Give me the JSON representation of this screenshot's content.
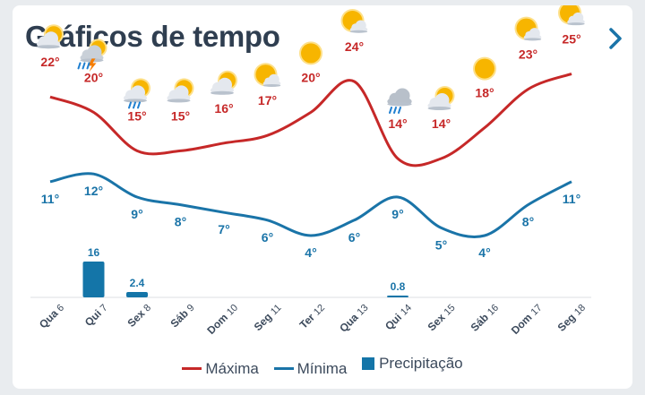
{
  "header": {
    "title": "Gráficos de tempo",
    "next_icon": "chevron-right-icon"
  },
  "colors": {
    "max": "#c62828",
    "min": "#1a74a8",
    "precip": "#1475a8",
    "title": "#2f3e50",
    "accent": "#1a74a8"
  },
  "chart_data": {
    "type": "line",
    "categories": [
      "Qua 6",
      "Qui 7",
      "Sex 8",
      "Sáb 9",
      "Dom 10",
      "Seg 11",
      "Ter 12",
      "Qua 13",
      "Qui 14",
      "Sex 15",
      "Sáb 16",
      "Dom 17",
      "Seg 18"
    ],
    "icons": [
      "partly-cloudy",
      "thunderstorm",
      "rain-sun",
      "partly-cloudy",
      "partly-cloudy",
      "sun-cloud",
      "sunny",
      "sun-cloud",
      "rain-cloud",
      "partly-cloudy",
      "sunny",
      "sun-cloud",
      "sun-cloud"
    ],
    "series": [
      {
        "name": "Máxima",
        "values": [
          22,
          20,
          15,
          15,
          16,
          17,
          20,
          24,
          14,
          14,
          18,
          23,
          25
        ],
        "labels": [
          "22°",
          "20°",
          "15°",
          "15°",
          "16°",
          "17°",
          "20°",
          "24°",
          "14°",
          "14°",
          "18°",
          "23°",
          "25°"
        ]
      },
      {
        "name": "Mínima",
        "values": [
          11,
          12,
          9,
          8,
          7,
          6,
          4,
          6,
          9,
          5,
          4,
          8,
          11
        ],
        "labels": [
          "11°",
          "12°",
          "9°",
          "8°",
          "7°",
          "6°",
          "4°",
          "6°",
          "9°",
          "5°",
          "4°",
          "8°",
          "11°"
        ]
      },
      {
        "name": "Precipitação",
        "values": [
          0,
          16,
          2.4,
          0,
          0,
          0,
          0,
          0,
          0.8,
          0,
          0,
          0,
          0
        ],
        "labels": [
          "",
          "16",
          "2.4",
          "",
          "",
          "",
          "",
          "",
          "0.8",
          "",
          "",
          "",
          ""
        ]
      }
    ],
    "legend": [
      "Máxima",
      "Mínima",
      "Precipitação"
    ],
    "legend_position": "bottom"
  }
}
